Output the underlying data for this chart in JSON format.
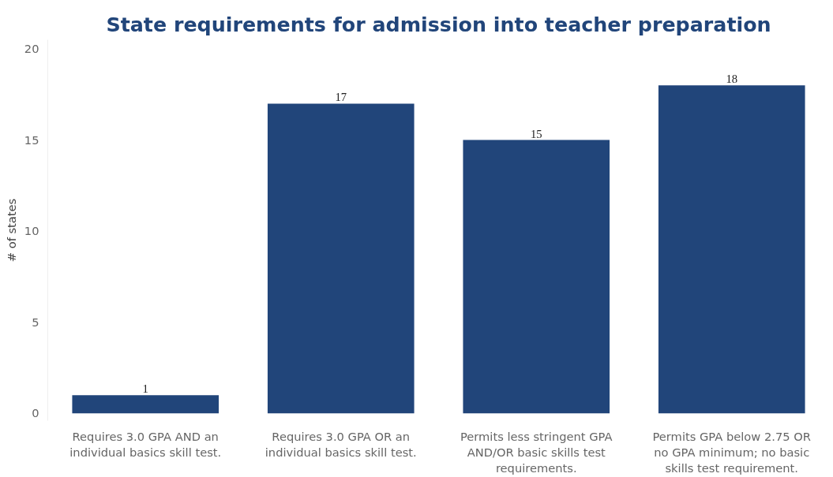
{
  "chart_data": {
    "type": "bar",
    "title": "State requirements for admission into teacher preparation",
    "ylabel": "# of states",
    "categories": [
      "Requires 3.0 GPA AND an individual basics skill test.",
      "Requires 3.0 GPA OR an individual basics skill test.",
      "Permits less stringent GPA AND/OR basic skills test requirements.",
      "Permits GPA below 2.75 OR no GPA minimum; no basic skills test requirement."
    ],
    "values": [
      1,
      17,
      15,
      18
    ],
    "color": "#21457a",
    "ylim": [
      -0.4,
      20.5
    ],
    "yticks": [
      0,
      5,
      10,
      15,
      20
    ],
    "grid": false,
    "data_labels": true
  }
}
